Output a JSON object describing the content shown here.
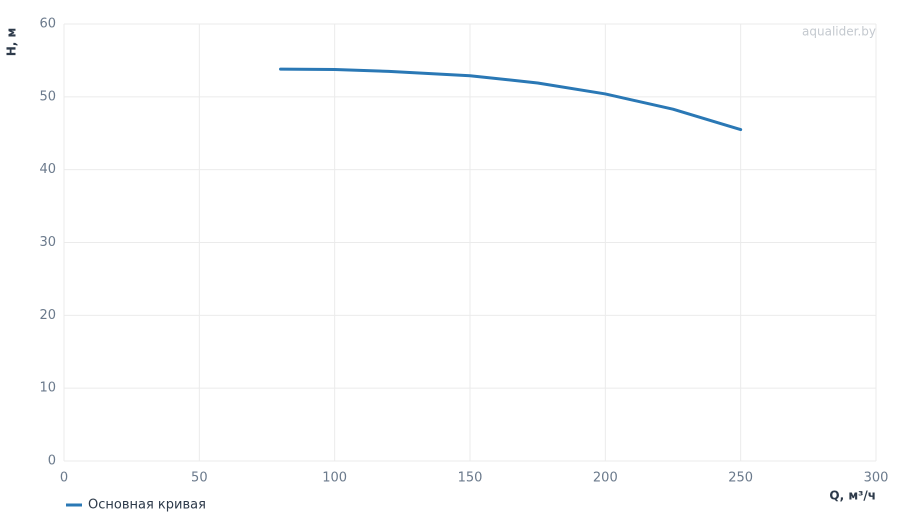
{
  "chart_data": {
    "type": "line",
    "watermark": "aqualider.by",
    "x_label": "Q, м³/ч",
    "y_label": "H, м",
    "x": [
      80,
      100,
      120,
      150,
      175,
      200,
      225,
      250
    ],
    "series": [
      {
        "name": "Основная кривая",
        "color": "#2a78b5",
        "values": [
          53.8,
          53.75,
          53.5,
          52.9,
          51.9,
          50.4,
          48.3,
          45.5
        ]
      }
    ],
    "xlim": [
      0,
      300
    ],
    "xticks": [
      0,
      50,
      100,
      150,
      200,
      250,
      300
    ],
    "ylim": [
      0,
      60
    ],
    "yticks": [
      0,
      10,
      20,
      30,
      40,
      50,
      60
    ],
    "grid": true
  }
}
